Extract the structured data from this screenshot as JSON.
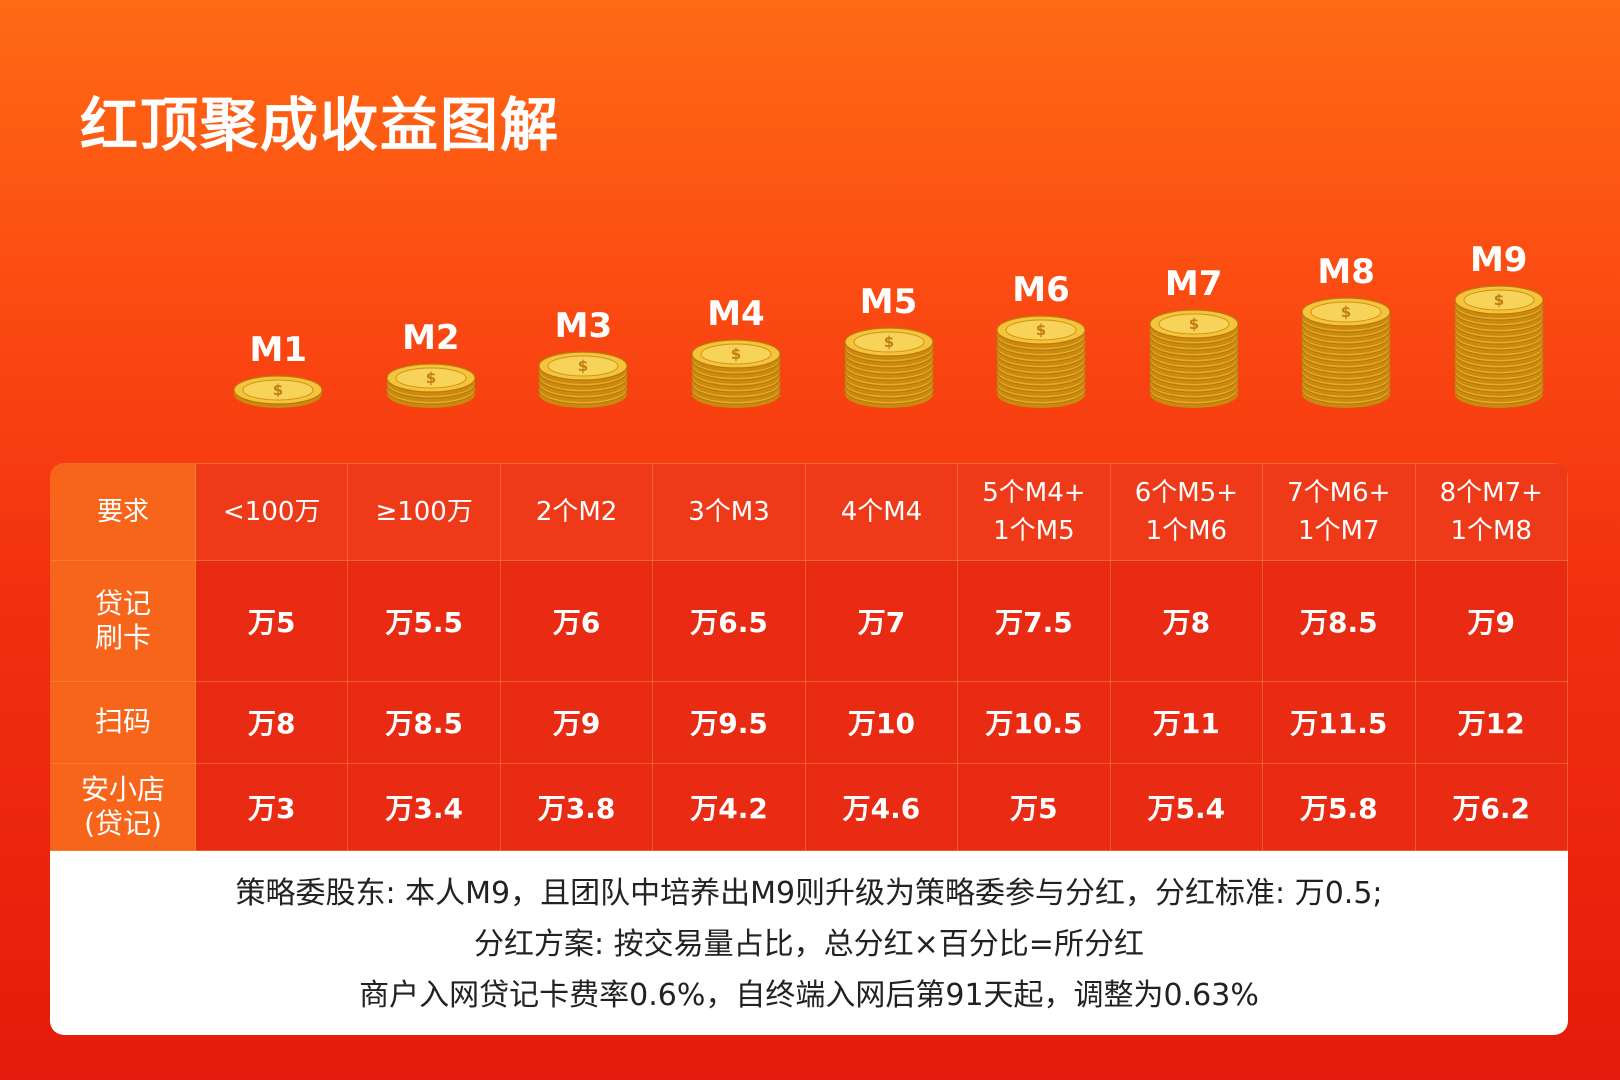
{
  "title": "红顶聚成收益图解",
  "colors": {
    "accent": "#ff6a14",
    "deep_red": "#e41b0c",
    "coin_gold": "#f2b92a"
  },
  "levels": [
    {
      "label": "M1",
      "coin_count": 1
    },
    {
      "label": "M2",
      "coin_count": 3
    },
    {
      "label": "M3",
      "coin_count": 5
    },
    {
      "label": "M4",
      "coin_count": 7
    },
    {
      "label": "M5",
      "coin_count": 9
    },
    {
      "label": "M6",
      "coin_count": 11
    },
    {
      "label": "M7",
      "coin_count": 12
    },
    {
      "label": "M8",
      "coin_count": 14
    },
    {
      "label": "M9",
      "coin_count": 16
    }
  ],
  "table": {
    "requirements": {
      "label": "要求",
      "cells": [
        [
          "<100万"
        ],
        [
          "≥100万"
        ],
        [
          "2个M2"
        ],
        [
          "3个M3"
        ],
        [
          "4个M4"
        ],
        [
          "5个M4+",
          "1个M5"
        ],
        [
          "6个M5+",
          "1个M6"
        ],
        [
          "7个M6+",
          "1个M7"
        ],
        [
          "8个M7+",
          "1个M8"
        ]
      ]
    },
    "rows": [
      {
        "label_lines": [
          "贷记",
          "刷卡"
        ],
        "values": [
          "万5",
          "万5.5",
          "万6",
          "万6.5",
          "万7",
          "万7.5",
          "万8",
          "万8.5",
          "万9"
        ]
      },
      {
        "label_lines": [
          "扫码"
        ],
        "values": [
          "万8",
          "万8.5",
          "万9",
          "万9.5",
          "万10",
          "万10.5",
          "万11",
          "万11.5",
          "万12"
        ]
      },
      {
        "label_lines": [
          "安小店",
          "(贷记)"
        ],
        "values": [
          "万3",
          "万3.4",
          "万3.8",
          "万4.2",
          "万4.6",
          "万5",
          "万5.4",
          "万5.8",
          "万6.2"
        ]
      }
    ]
  },
  "notes": [
    "策略委股东: 本人M9，且团队中培养出M9则升级为策略委参与分红，分红标准: 万0.5;",
    "分红方案: 按交易量占比，总分红×百分比=所分红",
    "商户入网贷记卡费率0.6%，自终端入网后第91天起，调整为0.63%"
  ]
}
